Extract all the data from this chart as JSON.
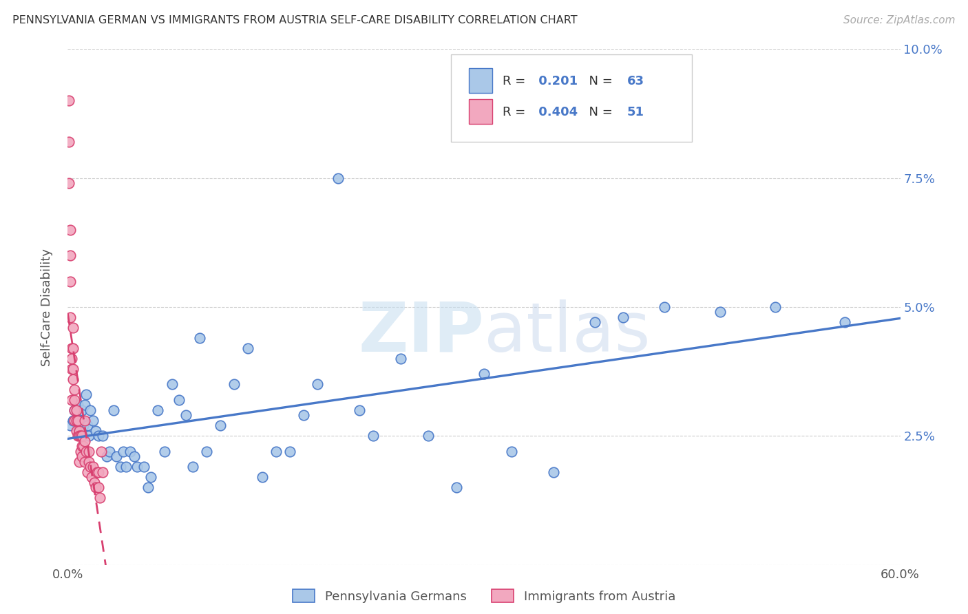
{
  "title": "PENNSYLVANIA GERMAN VS IMMIGRANTS FROM AUSTRIA SELF-CARE DISABILITY CORRELATION CHART",
  "source": "Source: ZipAtlas.com",
  "ylabel": "Self-Care Disability",
  "yticks": [
    0.0,
    0.025,
    0.05,
    0.075,
    0.1
  ],
  "ytick_labels": [
    "",
    "2.5%",
    "5.0%",
    "7.5%",
    "10.0%"
  ],
  "xtick_labels": [
    "0.0%",
    "",
    "",
    "",
    "",
    "",
    "60.0%"
  ],
  "legend_label1": "Pennsylvania Germans",
  "legend_label2": "Immigrants from Austria",
  "r1": 0.201,
  "n1": 63,
  "r2": 0.404,
  "n2": 51,
  "color1": "#aac8e8",
  "color2": "#f2a8bf",
  "line1_color": "#4878c8",
  "line2_color": "#d84070",
  "watermark_zip": "ZIP",
  "watermark_atlas": "atlas",
  "blue_scatter_x": [
    0.002,
    0.004,
    0.005,
    0.006,
    0.007,
    0.008,
    0.009,
    0.01,
    0.01,
    0.011,
    0.012,
    0.013,
    0.014,
    0.015,
    0.016,
    0.018,
    0.02,
    0.022,
    0.025,
    0.028,
    0.03,
    0.033,
    0.035,
    0.038,
    0.04,
    0.042,
    0.045,
    0.048,
    0.05,
    0.055,
    0.058,
    0.06,
    0.065,
    0.07,
    0.075,
    0.08,
    0.085,
    0.09,
    0.095,
    0.1,
    0.11,
    0.12,
    0.13,
    0.14,
    0.15,
    0.16,
    0.17,
    0.18,
    0.195,
    0.21,
    0.22,
    0.24,
    0.26,
    0.28,
    0.3,
    0.32,
    0.35,
    0.38,
    0.4,
    0.43,
    0.47,
    0.51,
    0.56
  ],
  "blue_scatter_y": [
    0.027,
    0.028,
    0.03,
    0.03,
    0.031,
    0.028,
    0.026,
    0.03,
    0.028,
    0.027,
    0.031,
    0.033,
    0.027,
    0.025,
    0.03,
    0.028,
    0.026,
    0.025,
    0.025,
    0.021,
    0.022,
    0.03,
    0.021,
    0.019,
    0.022,
    0.019,
    0.022,
    0.021,
    0.019,
    0.019,
    0.015,
    0.017,
    0.03,
    0.022,
    0.035,
    0.032,
    0.029,
    0.019,
    0.044,
    0.022,
    0.027,
    0.035,
    0.042,
    0.017,
    0.022,
    0.022,
    0.029,
    0.035,
    0.075,
    0.03,
    0.025,
    0.04,
    0.025,
    0.015,
    0.037,
    0.022,
    0.018,
    0.047,
    0.048,
    0.05,
    0.049,
    0.05,
    0.047
  ],
  "pink_scatter_x": [
    0.001,
    0.001,
    0.001,
    0.002,
    0.002,
    0.002,
    0.002,
    0.003,
    0.003,
    0.003,
    0.003,
    0.004,
    0.004,
    0.004,
    0.004,
    0.005,
    0.005,
    0.005,
    0.005,
    0.006,
    0.006,
    0.006,
    0.007,
    0.007,
    0.008,
    0.008,
    0.008,
    0.009,
    0.009,
    0.01,
    0.01,
    0.01,
    0.011,
    0.012,
    0.012,
    0.012,
    0.013,
    0.014,
    0.015,
    0.015,
    0.016,
    0.017,
    0.018,
    0.019,
    0.02,
    0.021,
    0.022,
    0.022,
    0.023,
    0.024,
    0.025
  ],
  "pink_scatter_y": [
    0.09,
    0.082,
    0.074,
    0.065,
    0.06,
    0.055,
    0.048,
    0.042,
    0.04,
    0.038,
    0.032,
    0.046,
    0.042,
    0.038,
    0.036,
    0.034,
    0.032,
    0.03,
    0.028,
    0.03,
    0.028,
    0.026,
    0.025,
    0.028,
    0.026,
    0.025,
    0.02,
    0.025,
    0.022,
    0.025,
    0.023,
    0.021,
    0.023,
    0.028,
    0.024,
    0.02,
    0.022,
    0.018,
    0.022,
    0.02,
    0.019,
    0.017,
    0.019,
    0.016,
    0.015,
    0.018,
    0.018,
    0.015,
    0.013,
    0.022,
    0.018
  ]
}
